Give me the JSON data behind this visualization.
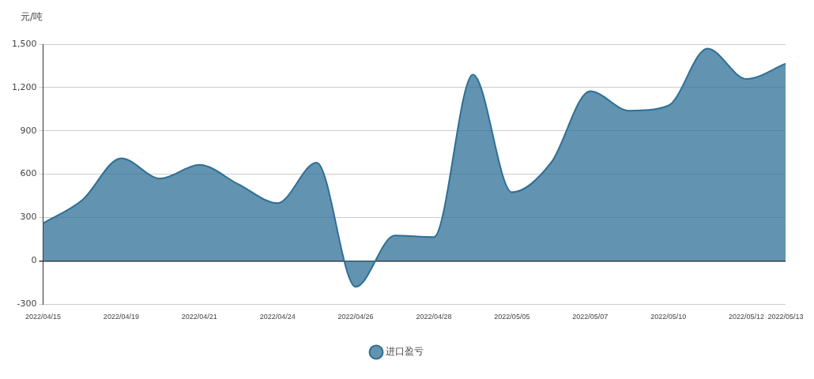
{
  "chart_data": {
    "type": "area",
    "ylabel": "元/吨",
    "categories": [
      "2022/04/15",
      null,
      "2022/04/19",
      null,
      "2022/04/21",
      null,
      "2022/04/24",
      null,
      "2022/04/26",
      null,
      "2022/04/28",
      null,
      "2022/05/05",
      null,
      "2022/05/07",
      null,
      "2022/05/10",
      null,
      "2022/05/12",
      "2022/05/13"
    ],
    "series": [
      {
        "name": "进口盈亏",
        "color": "#2e6f96",
        "values": [
          260,
          420,
          710,
          570,
          665,
          530,
          400,
          680,
          -180,
          175,
          165,
          1290,
          475,
          680,
          1175,
          1040,
          1075,
          1470,
          1260,
          1365
        ]
      }
    ],
    "ylim": [
      -300,
      1500
    ],
    "yticks": [
      -300,
      0,
      300,
      600,
      900,
      {
        "value": 1200,
        "label": "1,200"
      },
      {
        "value": 1500,
        "label": "1,500"
      }
    ],
    "grid": "y",
    "legend": "bottom",
    "marker": "none"
  }
}
